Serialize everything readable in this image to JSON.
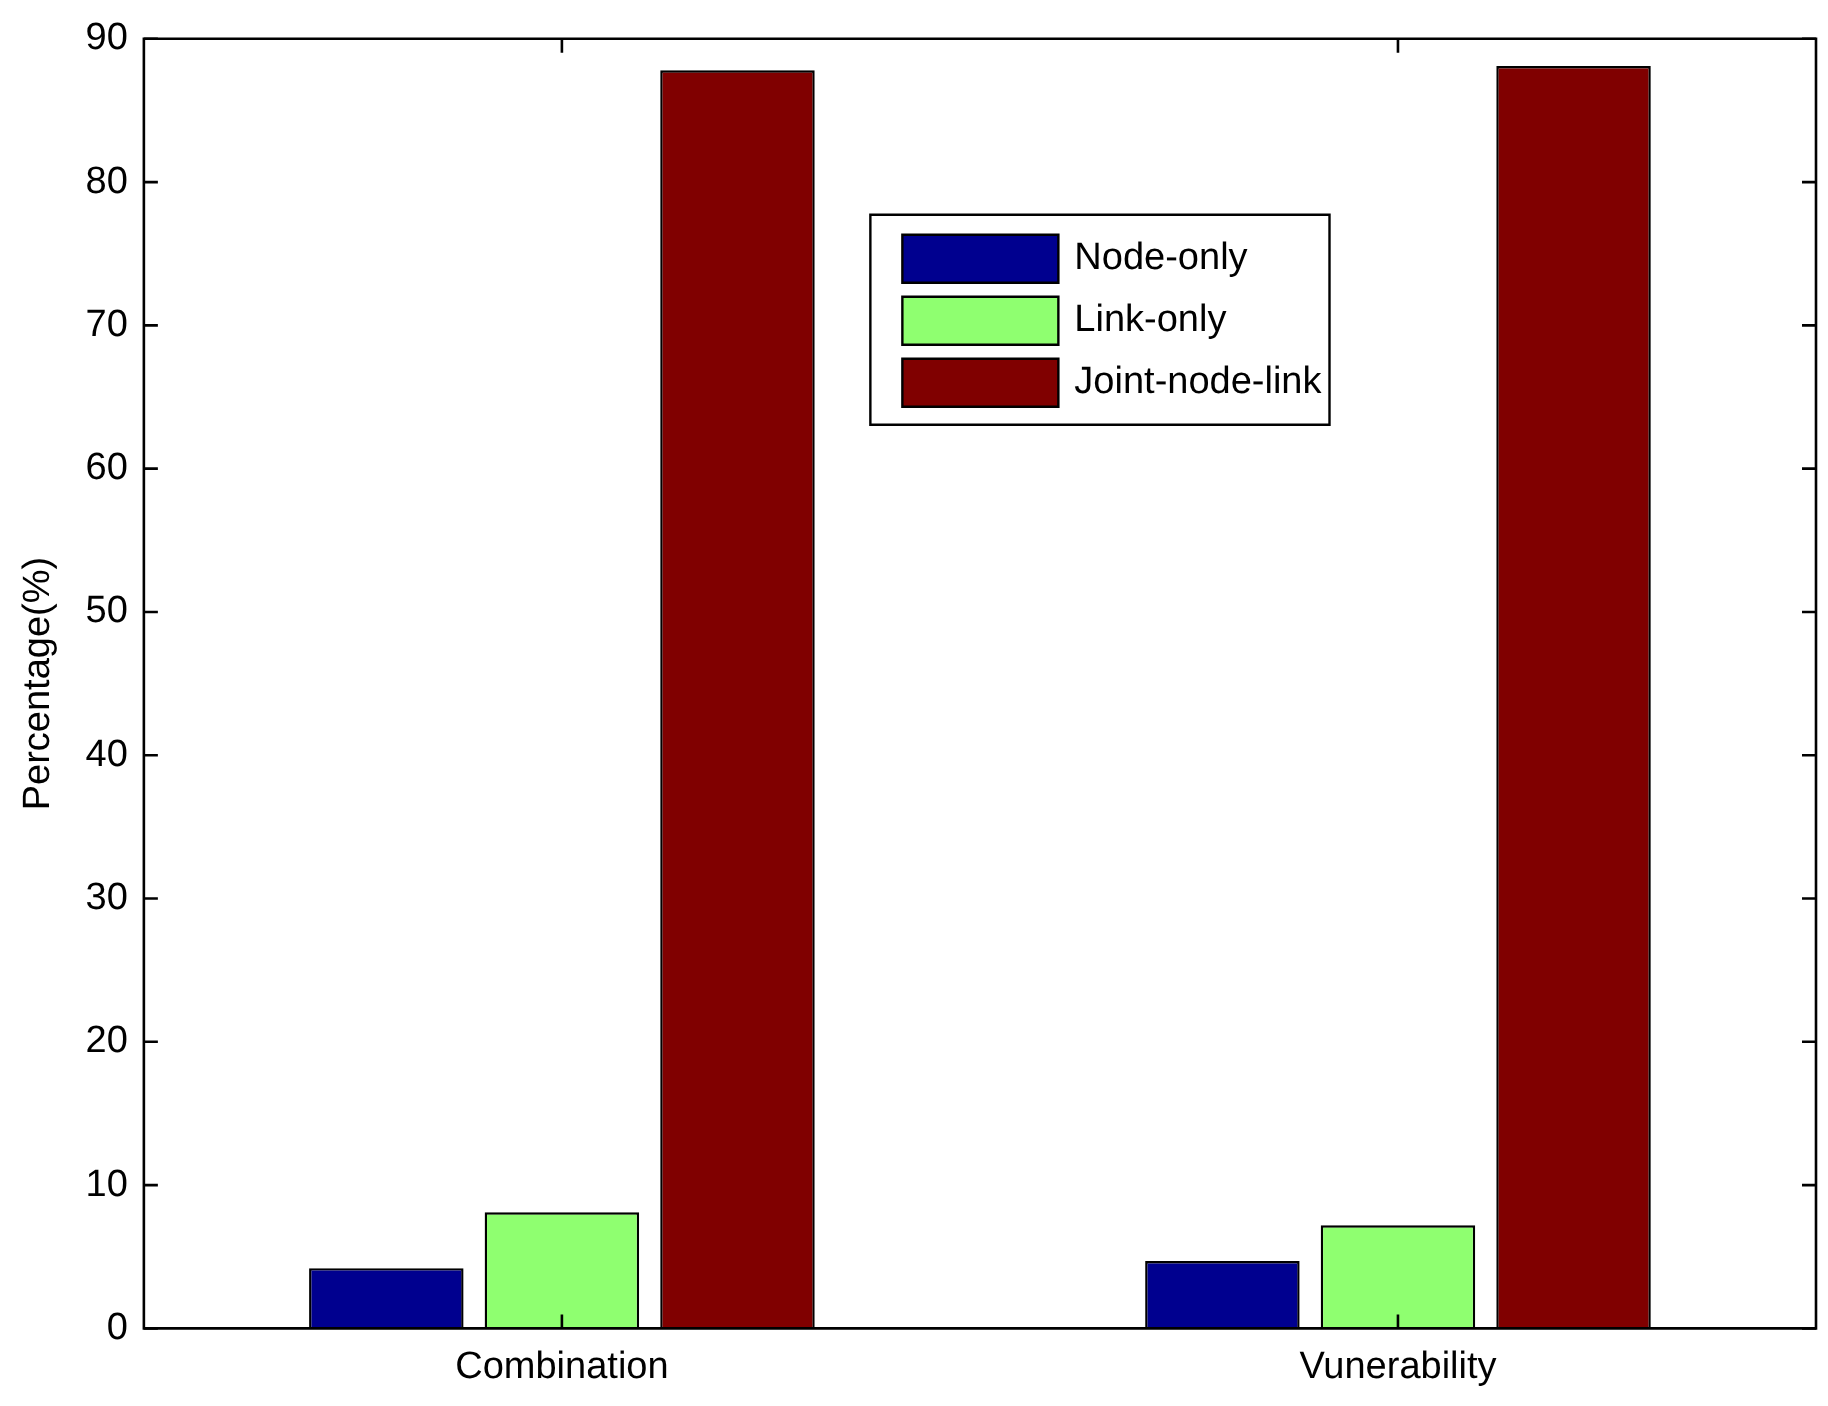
{
  "chart_data": {
    "type": "bar",
    "ylabel": "Percentage(%)",
    "categories": [
      "Combination",
      "Vunerability"
    ],
    "series": [
      {
        "name": "Node-only",
        "color": "#00008f",
        "values": [
          4.2,
          4.7
        ]
      },
      {
        "name": "Link-only",
        "color": "#8fff70",
        "values": [
          8.1,
          7.2
        ]
      },
      {
        "name": "Joint-node-link",
        "color": "#800000",
        "values": [
          87.8,
          88.1
        ]
      }
    ],
    "ylim": [
      0,
      90
    ],
    "yticks": [
      0,
      10,
      20,
      30,
      40,
      50,
      60,
      70,
      80,
      90
    ],
    "grid": false,
    "legend": "top"
  }
}
